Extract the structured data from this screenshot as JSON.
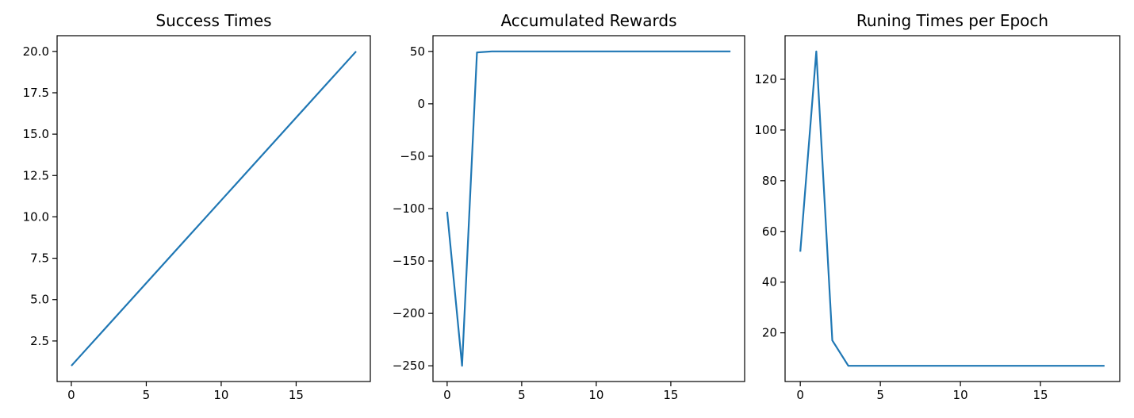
{
  "chart_data": [
    {
      "type": "line",
      "title": "Success Times",
      "xlabel": "",
      "ylabel": "",
      "xlim": [
        -0.95,
        19.95
      ],
      "ylim": [
        0.05,
        20.95
      ],
      "xticks": [
        0,
        5,
        10,
        15
      ],
      "xtick_labels": [
        "0",
        "5",
        "10",
        "15"
      ],
      "yticks": [
        2.5,
        5.0,
        7.5,
        10.0,
        12.5,
        15.0,
        17.5,
        20.0
      ],
      "ytick_labels": [
        "2.5",
        "5.0",
        "7.5",
        "10.0",
        "12.5",
        "15.0",
        "17.5",
        "20.0"
      ],
      "grid": false,
      "series": [
        {
          "x": [
            0,
            1,
            2,
            3,
            4,
            5,
            6,
            7,
            8,
            9,
            10,
            11,
            12,
            13,
            14,
            15,
            16,
            17,
            18,
            19
          ],
          "values": [
            1,
            2,
            3,
            4,
            5,
            6,
            7,
            8,
            9,
            10,
            11,
            12,
            13,
            14,
            15,
            16,
            17,
            18,
            19,
            20
          ],
          "color": "#1f77b4"
        }
      ]
    },
    {
      "type": "line",
      "title": "Accumulated Rewards",
      "xlabel": "",
      "ylabel": "",
      "xlim": [
        -0.95,
        19.95
      ],
      "ylim": [
        -265,
        65
      ],
      "xticks": [
        0,
        5,
        10,
        15
      ],
      "xtick_labels": [
        "0",
        "5",
        "10",
        "15"
      ],
      "yticks": [
        -250,
        -200,
        -150,
        -100,
        -50,
        0,
        50
      ],
      "ytick_labels": [
        "−250",
        "−200",
        "−150",
        "−100",
        "−50",
        "0",
        "50"
      ],
      "grid": false,
      "series": [
        {
          "x": [
            0,
            1,
            2,
            3,
            4,
            5,
            6,
            7,
            8,
            9,
            10,
            11,
            12,
            13,
            14,
            15,
            16,
            17,
            18,
            19
          ],
          "values": [
            -103,
            -250,
            49,
            50,
            50,
            50,
            50,
            50,
            50,
            50,
            50,
            50,
            50,
            50,
            50,
            50,
            50,
            50,
            50,
            50
          ],
          "color": "#1f77b4"
        }
      ]
    },
    {
      "type": "line",
      "title": "Runing Times per Epoch",
      "xlabel": "",
      "ylabel": "",
      "xlim": [
        -0.95,
        19.95
      ],
      "ylim": [
        0.8,
        137.2
      ],
      "xticks": [
        0,
        5,
        10,
        15
      ],
      "xtick_labels": [
        "0",
        "5",
        "10",
        "15"
      ],
      "yticks": [
        20,
        40,
        60,
        80,
        100,
        120
      ],
      "ytick_labels": [
        "20",
        "40",
        "60",
        "80",
        "100",
        "120"
      ],
      "grid": false,
      "series": [
        {
          "x": [
            0,
            1,
            2,
            3,
            4,
            5,
            6,
            7,
            8,
            9,
            10,
            11,
            12,
            13,
            14,
            15,
            16,
            17,
            18,
            19
          ],
          "values": [
            52,
            131,
            17,
            7,
            7,
            7,
            7,
            7,
            7,
            7,
            7,
            7,
            7,
            7,
            7,
            7,
            7,
            7,
            7,
            7
          ],
          "color": "#1f77b4"
        }
      ]
    }
  ]
}
